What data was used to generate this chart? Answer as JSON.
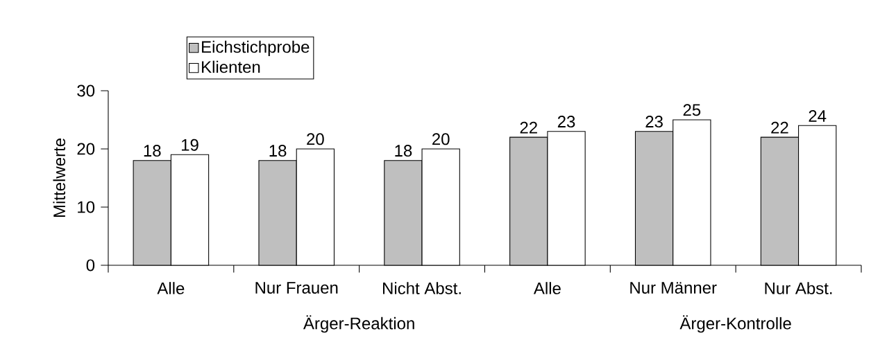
{
  "chart_data": {
    "type": "bar",
    "ylabel": "Mittelwerte",
    "categories": [
      "Alle",
      "Nur Frauen",
      "Nicht Abst.",
      "Alle",
      "Nur Männer",
      "Nur Abst."
    ],
    "series": [
      {
        "name": "Eichstichprobe",
        "color": "#bfbfbf",
        "values": [
          18,
          18,
          18,
          22,
          23,
          22
        ]
      },
      {
        "name": "Klienten",
        "color": "#ffffff",
        "values": [
          19,
          20,
          20,
          23,
          25,
          24
        ]
      }
    ],
    "ylim": [
      0,
      30
    ],
    "yticks": [
      0,
      10,
      20,
      30
    ],
    "grid": false,
    "legend": "top left",
    "data_labels": true,
    "annotations": [
      "Ärger-Reaktion",
      "Ärger-Kontrolle"
    ]
  }
}
